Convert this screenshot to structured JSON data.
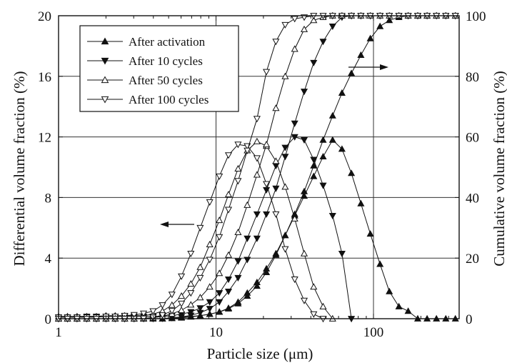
{
  "chart_data": {
    "type": "line",
    "xlabel": "Particle size (μm)",
    "ylabel_left": "Differential volume fraction (%)",
    "ylabel_right": "Cumulative volume fraction (%)",
    "x_scale": "log",
    "xlim": [
      1,
      350
    ],
    "ylim_left": [
      0,
      20
    ],
    "ylim_right": [
      0,
      100
    ],
    "grid": true,
    "legend_position": "top-left",
    "x_ticks": [
      {
        "value": 1,
        "label": "1"
      },
      {
        "value": 10,
        "label": "10"
      },
      {
        "value": 100,
        "label": "100"
      }
    ],
    "y_ticks_left": [
      {
        "value": 0,
        "label": "0"
      },
      {
        "value": 4,
        "label": "4"
      },
      {
        "value": 8,
        "label": "8"
      },
      {
        "value": 12,
        "label": "12"
      },
      {
        "value": 16,
        "label": "16"
      },
      {
        "value": 20,
        "label": "20"
      }
    ],
    "y_ticks_right": [
      {
        "value": 0,
        "label": "0"
      },
      {
        "value": 20,
        "label": "20"
      },
      {
        "value": 40,
        "label": "40"
      },
      {
        "value": 60,
        "label": "60"
      },
      {
        "value": 80,
        "label": "80"
      },
      {
        "value": 100,
        "label": "100"
      }
    ],
    "legend": [
      {
        "label": "After activation",
        "marker": "up-filled"
      },
      {
        "label": "After 10 cycles",
        "marker": "down-filled"
      },
      {
        "label": " After 50 cycles",
        "marker": "up-open"
      },
      {
        "label": "After 100 cycles",
        "marker": "down-open"
      }
    ],
    "series": [
      {
        "name": "After activation",
        "marker": "up-filled",
        "axis": "left",
        "kind": "differential",
        "x": [
          1.0,
          1.14,
          1.31,
          1.51,
          1.74,
          2.0,
          2.29,
          2.63,
          3.02,
          3.47,
          3.98,
          4.57,
          5.25,
          6.03,
          6.92,
          7.94,
          9.12,
          10.5,
          12.0,
          13.8,
          15.8,
          18.2,
          20.9,
          24.0,
          27.5,
          31.6,
          36.3,
          41.7,
          47.9,
          55.0,
          63.1,
          72.4,
          83.2,
          95.5,
          110,
          126,
          145,
          166,
          191,
          219,
          251,
          288,
          331
        ],
        "y": [
          0.0,
          0.0,
          0.0,
          0.0,
          0.0,
          0.0,
          0.0,
          0.0,
          0.0,
          0.0,
          0.0,
          0.0,
          0.05,
          0.1,
          0.15,
          0.2,
          0.3,
          0.45,
          0.7,
          1.1,
          1.7,
          2.4,
          3.3,
          4.3,
          5.5,
          6.8,
          8.1,
          9.4,
          10.7,
          11.8,
          11.2,
          9.6,
          7.6,
          5.6,
          3.6,
          1.8,
          0.8,
          0.5,
          0.0,
          0.0,
          0.0,
          0.0,
          0.0
        ]
      },
      {
        "name": "After 10 cycles",
        "marker": "down-filled",
        "axis": "left",
        "kind": "differential",
        "x": [
          1.0,
          1.14,
          1.31,
          1.51,
          1.74,
          2.0,
          2.29,
          2.63,
          3.02,
          3.47,
          3.98,
          4.57,
          5.25,
          6.03,
          6.92,
          7.94,
          9.12,
          10.5,
          12.0,
          13.8,
          15.8,
          18.2,
          20.9,
          24.0,
          27.5,
          31.6,
          36.3,
          41.7,
          47.9,
          55.0,
          63.1,
          72.4
        ],
        "y": [
          0.1,
          0.1,
          0.1,
          0.15,
          0.15,
          0.15,
          0.15,
          0.15,
          0.15,
          0.15,
          0.15,
          0.15,
          0.2,
          0.3,
          0.45,
          0.7,
          1.1,
          1.7,
          2.6,
          3.8,
          5.3,
          6.9,
          8.5,
          10.1,
          11.3,
          12.0,
          11.8,
          10.5,
          8.8,
          6.8,
          4.3,
          0.0
        ]
      },
      {
        "name": " After 50 cycles",
        "marker": "up-open",
        "axis": "left",
        "kind": "differential",
        "x": [
          1.0,
          1.14,
          1.31,
          1.51,
          1.74,
          2.0,
          2.29,
          2.63,
          3.02,
          3.47,
          3.98,
          4.57,
          5.25,
          6.03,
          6.92,
          7.94,
          9.12,
          10.5,
          12.0,
          13.8,
          15.8,
          18.2,
          20.9,
          24.0,
          27.5,
          31.6,
          36.3,
          41.7,
          47.9,
          55.0
        ],
        "y": [
          0.15,
          0.15,
          0.15,
          0.15,
          0.15,
          0.2,
          0.2,
          0.2,
          0.2,
          0.2,
          0.3,
          0.5,
          0.9,
          1.5,
          2.3,
          3.4,
          4.9,
          6.5,
          8.2,
          9.9,
          11.1,
          11.7,
          11.4,
          10.4,
          8.7,
          6.6,
          4.3,
          2.1,
          0.8,
          0.0
        ]
      },
      {
        "name": "After 100 cycles",
        "marker": "down-open",
        "axis": "left",
        "kind": "differential",
        "x": [
          1.0,
          1.14,
          1.31,
          1.51,
          1.74,
          2.0,
          2.29,
          2.63,
          3.02,
          3.47,
          3.98,
          4.57,
          5.25,
          6.03,
          6.92,
          7.94,
          9.12,
          10.5,
          12.0,
          13.8,
          15.8,
          18.2,
          20.9,
          24.0,
          27.5,
          31.6,
          36.3,
          41.7,
          47.9
        ],
        "y": [
          0.1,
          0.1,
          0.1,
          0.1,
          0.1,
          0.15,
          0.15,
          0.2,
          0.25,
          0.35,
          0.5,
          0.9,
          1.6,
          2.8,
          4.3,
          6.0,
          7.7,
          9.4,
          10.8,
          11.5,
          11.4,
          10.6,
          8.9,
          6.9,
          4.6,
          2.6,
          1.2,
          0.3,
          0.0
        ]
      },
      {
        "name": "After activation",
        "marker": "up-filled",
        "axis": "right",
        "kind": "cumulative",
        "x": [
          1.0,
          1.14,
          1.31,
          1.51,
          1.74,
          2.0,
          2.29,
          2.63,
          3.02,
          3.47,
          3.98,
          4.57,
          5.25,
          6.03,
          6.92,
          7.94,
          9.12,
          10.5,
          12.0,
          13.8,
          15.8,
          18.2,
          20.9,
          24.0,
          27.5,
          31.6,
          36.3,
          41.7,
          47.9,
          55.0,
          63.1,
          72.4,
          83.2,
          95.5,
          110,
          126,
          145,
          166,
          191,
          219,
          251,
          288,
          331
        ],
        "y": [
          0.0,
          0.0,
          0.0,
          0.0,
          0.0,
          0.0,
          0.0,
          0.0,
          0.0,
          0.0,
          0.0,
          0.0,
          0.1,
          0.3,
          0.6,
          1.0,
          1.5,
          2.2,
          3.3,
          5.0,
          7.5,
          10.8,
          15.3,
          21.0,
          27.5,
          34.5,
          42.0,
          50.5,
          59.0,
          67.0,
          74.5,
          81.0,
          87.0,
          92.5,
          96.5,
          98.5,
          99.5,
          100,
          100,
          100,
          100,
          100,
          100
        ]
      },
      {
        "name": "After 10 cycles",
        "marker": "down-filled",
        "axis": "right",
        "kind": "cumulative",
        "x": [
          1.0,
          1.14,
          1.31,
          1.51,
          1.74,
          2.0,
          2.29,
          2.63,
          3.02,
          3.47,
          3.98,
          4.57,
          5.25,
          6.03,
          6.92,
          7.94,
          9.12,
          10.5,
          12.0,
          13.8,
          15.8,
          18.2,
          20.9,
          24.0,
          27.5,
          31.6,
          36.3,
          41.7,
          47.9,
          55.0,
          63.1,
          72.4,
          83.2,
          95.5,
          110,
          126,
          145,
          166,
          191,
          219,
          251,
          288,
          331
        ],
        "y": [
          0.0,
          0.0,
          0.0,
          0.0,
          0.0,
          0.0,
          0.0,
          0.0,
          0.0,
          0.0,
          0.0,
          0.1,
          0.3,
          0.6,
          1.1,
          2.0,
          3.3,
          5.5,
          9.0,
          13.5,
          19.5,
          26.5,
          34.5,
          43.0,
          53.5,
          64.5,
          75.0,
          84.5,
          91.5,
          96.5,
          99.5,
          100,
          100,
          100,
          100,
          100,
          100,
          100,
          100,
          100,
          100,
          100,
          100
        ]
      },
      {
        "name": " After 50 cycles",
        "marker": "up-open",
        "axis": "right",
        "kind": "cumulative",
        "x": [
          1.0,
          1.14,
          1.31,
          1.51,
          1.74,
          2.0,
          2.29,
          2.63,
          3.02,
          3.47,
          3.98,
          4.57,
          5.25,
          6.03,
          6.92,
          7.94,
          9.12,
          10.5,
          12.0,
          13.8,
          15.8,
          18.2,
          20.9,
          24.0,
          27.5,
          31.6,
          36.3,
          41.7,
          47.9,
          55.0,
          63.1,
          72.4,
          83.2,
          95.5,
          110,
          126,
          145,
          166,
          191,
          219,
          251,
          288,
          331
        ],
        "y": [
          0.0,
          0.0,
          0.0,
          0.0,
          0.0,
          0.0,
          0.0,
          0.0,
          0.0,
          0.1,
          0.3,
          0.8,
          1.6,
          2.8,
          4.6,
          7.0,
          10.5,
          15.0,
          21.0,
          28.5,
          37.5,
          47.5,
          57.5,
          69.5,
          80.0,
          89.0,
          95.5,
          98.5,
          99.5,
          100,
          100,
          100,
          100,
          100,
          100,
          100,
          100,
          100,
          100,
          100,
          100,
          100,
          100
        ]
      },
      {
        "name": "After 100 cycles",
        "marker": "down-open",
        "axis": "right",
        "kind": "cumulative",
        "x": [
          1.0,
          1.14,
          1.31,
          1.51,
          1.74,
          2.0,
          2.29,
          2.63,
          3.02,
          3.47,
          3.98,
          4.57,
          5.25,
          6.03,
          6.92,
          7.94,
          9.12,
          10.5,
          12.0,
          13.8,
          15.8,
          18.2,
          20.9,
          24.0,
          27.5,
          31.6,
          36.3,
          41.7,
          47.9,
          55.0,
          63.1,
          72.4,
          83.2,
          95.5,
          110,
          126,
          145,
          166,
          191,
          219,
          251,
          288,
          331
        ],
        "y": [
          0.0,
          0.0,
          0.0,
          0.0,
          0.0,
          0.0,
          0.0,
          0.0,
          0.0,
          0.1,
          0.4,
          1.2,
          2.6,
          5.0,
          8.5,
          13.5,
          19.5,
          27.0,
          36.0,
          45.5,
          55.5,
          66.0,
          81.5,
          91.5,
          97.0,
          99.0,
          99.5,
          100,
          100,
          100,
          100,
          100,
          100,
          100,
          100,
          100,
          100,
          100,
          100,
          100,
          100,
          100,
          100
        ]
      }
    ]
  }
}
